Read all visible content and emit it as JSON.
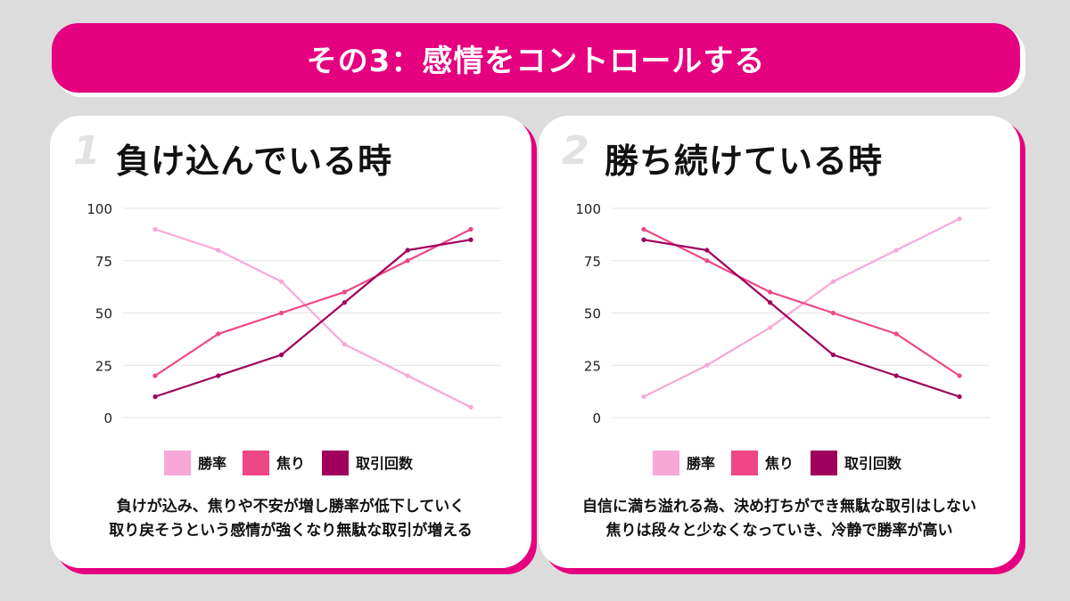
{
  "banner": {
    "title": "その3：感情をコントロールする"
  },
  "colors": {
    "accent": "#e4007f",
    "win_rate": "#f7a8d6",
    "impatience": "#ef4786",
    "trades": "#a0005b"
  },
  "panels": [
    {
      "number": "1",
      "title": "負け込んでいる時",
      "description": [
        "負けが込み、焦りや不安が増し勝率が低下していく",
        "取り戻そうという感情が強くなり無駄な取引が増える"
      ]
    },
    {
      "number": "2",
      "title": "勝ち続けている時",
      "description": [
        "自信に満ち溢れる為、決め打ちができ無駄な取引はしない",
        "焦りは段々と少なくなっていき、冷静で勝率が高い"
      ]
    }
  ],
  "chart_data": [
    {
      "type": "line",
      "x": [
        1,
        2,
        3,
        4,
        5,
        6
      ],
      "ylim": [
        0,
        100
      ],
      "yticks": [
        "0",
        "25",
        "50",
        "75",
        "100"
      ],
      "legend_position": "bottom",
      "grid": true,
      "series": [
        {
          "name": "勝率",
          "values": [
            90,
            80,
            65,
            35,
            20,
            5
          ]
        },
        {
          "name": "焦り",
          "values": [
            20,
            40,
            50,
            60,
            75,
            90
          ]
        },
        {
          "name": "取引回数",
          "values": [
            10,
            20,
            30,
            55,
            80,
            85
          ]
        }
      ]
    },
    {
      "type": "line",
      "x": [
        1,
        2,
        3,
        4,
        5,
        6
      ],
      "ylim": [
        0,
        100
      ],
      "yticks": [
        "0",
        "25",
        "50",
        "75",
        "100"
      ],
      "legend_position": "bottom",
      "grid": true,
      "series": [
        {
          "name": "勝率",
          "values": [
            10,
            25,
            43,
            65,
            80,
            95
          ]
        },
        {
          "name": "焦り",
          "values": [
            90,
            75,
            60,
            50,
            40,
            20
          ]
        },
        {
          "name": "取引回数",
          "values": [
            85,
            80,
            55,
            30,
            20,
            10
          ]
        }
      ]
    }
  ]
}
